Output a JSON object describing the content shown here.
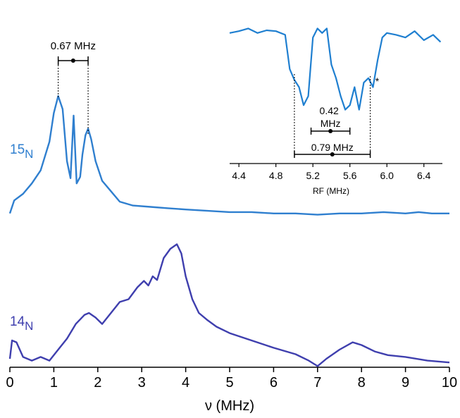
{
  "colors": {
    "n15": "#2f7fcf",
    "n14": "#3f3fae",
    "inset": "#1f7fd0",
    "axis": "#000000"
  },
  "chart_data": [
    {
      "type": "line",
      "xlabel": "ν (MHz)",
      "xlim": [
        0,
        10
      ],
      "x_ticks": [
        "0",
        "1",
        "2",
        "3",
        "4",
        "5",
        "6",
        "7",
        "8",
        "9",
        "10"
      ],
      "series": [
        {
          "name": "15N",
          "x": [
            0,
            0.1,
            0.3,
            0.5,
            0.7,
            0.9,
            1.0,
            1.1,
            1.2,
            1.3,
            1.38,
            1.45,
            1.52,
            1.6,
            1.65,
            1.72,
            1.78,
            1.85,
            1.95,
            2.1,
            2.3,
            2.5,
            2.8,
            3.2,
            3.6,
            4.0,
            4.5,
            5.0,
            5.5,
            6.0,
            6.5,
            7.0,
            7.5,
            8.0,
            8.5,
            9.0,
            9.3,
            9.6,
            10.0
          ],
          "y": [
            0.05,
            0.15,
            0.2,
            0.28,
            0.38,
            0.6,
            0.82,
            0.95,
            0.85,
            0.45,
            0.32,
            0.8,
            0.28,
            0.33,
            0.5,
            0.65,
            0.7,
            0.62,
            0.45,
            0.3,
            0.22,
            0.14,
            0.11,
            0.1,
            0.09,
            0.08,
            0.07,
            0.06,
            0.06,
            0.05,
            0.05,
            0.04,
            0.05,
            0.05,
            0.06,
            0.05,
            0.06,
            0.05,
            0.05
          ]
        },
        {
          "name": "14N",
          "x": [
            0,
            0.05,
            0.15,
            0.3,
            0.5,
            0.7,
            0.9,
            1.1,
            1.3,
            1.5,
            1.7,
            1.8,
            1.95,
            2.1,
            2.3,
            2.5,
            2.7,
            2.9,
            3.05,
            3.15,
            3.25,
            3.35,
            3.5,
            3.65,
            3.8,
            3.9,
            4.0,
            4.15,
            4.3,
            4.5,
            4.7,
            5.0,
            5.5,
            6.0,
            6.5,
            6.8,
            7.0,
            7.2,
            7.5,
            7.8,
            8.0,
            8.3,
            8.6,
            9.0,
            9.5,
            10.0
          ],
          "y": [
            0.1,
            0.3,
            0.28,
            0.12,
            0.08,
            0.12,
            0.08,
            0.2,
            0.32,
            0.48,
            0.58,
            0.6,
            0.55,
            0.48,
            0.6,
            0.72,
            0.75,
            0.88,
            0.95,
            0.9,
            1.0,
            0.96,
            1.2,
            1.3,
            1.35,
            1.25,
            1.0,
            0.75,
            0.6,
            0.52,
            0.45,
            0.38,
            0.3,
            0.22,
            0.15,
            0.08,
            0.02,
            0.1,
            0.2,
            0.28,
            0.25,
            0.18,
            0.14,
            0.12,
            0.08,
            0.06
          ]
        }
      ],
      "annotations": [
        {
          "text": "0.67 MHz",
          "from": 1.1,
          "to": 1.78
        }
      ]
    },
    {
      "type": "line",
      "xlabel": "RF (MHz)",
      "xlim": [
        4.3,
        6.6
      ],
      "x_ticks": [
        "4.4",
        "4.8",
        "5.2",
        "5.6",
        "6.0",
        "6.4"
      ],
      "series": [
        {
          "x": [
            4.3,
            4.4,
            4.5,
            4.6,
            4.7,
            4.8,
            4.9,
            4.95,
            5.0,
            5.05,
            5.1,
            5.15,
            5.2,
            5.25,
            5.3,
            5.35,
            5.4,
            5.45,
            5.5,
            5.55,
            5.6,
            5.65,
            5.7,
            5.75,
            5.8,
            5.85,
            5.9,
            5.95,
            6.0,
            6.1,
            6.2,
            6.3,
            6.4,
            6.5,
            6.58
          ],
          "y": [
            0.9,
            0.92,
            0.95,
            0.9,
            0.93,
            0.92,
            0.88,
            0.5,
            0.38,
            0.3,
            0.1,
            0.2,
            0.85,
            0.95,
            0.9,
            0.95,
            0.55,
            0.4,
            0.2,
            0.05,
            0.1,
            0.3,
            0.05,
            0.35,
            0.4,
            0.3,
            0.6,
            0.85,
            0.9,
            0.88,
            0.85,
            0.92,
            0.82,
            0.88,
            0.8
          ]
        }
      ],
      "annotations": [
        {
          "text": "0.42 MHz",
          "from": 5.18,
          "to": 5.6
        },
        {
          "text": "0.79 MHz",
          "from": 5.0,
          "to": 5.82
        },
        {
          "text": "*",
          "at": 5.88
        }
      ]
    }
  ],
  "labels": {
    "n15": {
      "base": "15",
      "sub": "N"
    },
    "n14": {
      "base": "14",
      "sub": "N"
    }
  }
}
